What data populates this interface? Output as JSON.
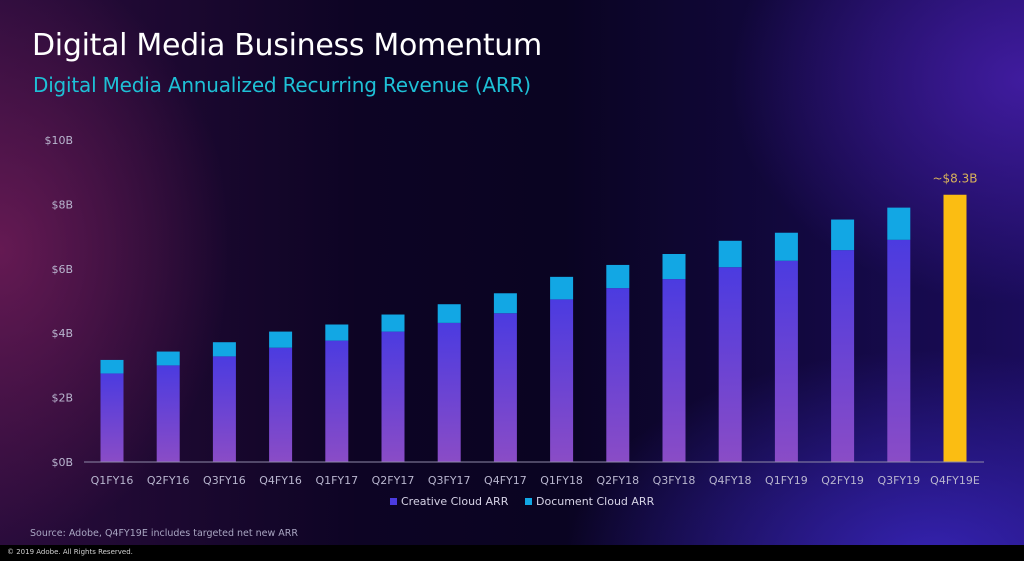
{
  "slide": {
    "title": "Digital Media Business Momentum",
    "subtitle": "Digital Media Annualized Recurring Revenue (ARR)",
    "source": "Source:  Adobe, Q4FY19E includes targeted net new ARR",
    "copyright": "© 2019 Adobe.  All Rights Reserved."
  },
  "colors": {
    "creative_cloud_top": "#4b3be0",
    "creative_cloud_bottom": "#8a4cc6",
    "document_cloud": "#12a7e4",
    "estimate": "#fbbd12",
    "estimate_label": "#d8b25a",
    "axis_text": "#b9b6cf",
    "title": "#ffffff",
    "subtitle": "#1ec0d6"
  },
  "chart_data": {
    "type": "bar",
    "stacked": true,
    "title": "Digital Media Annualized Recurring Revenue (ARR)",
    "xlabel": "",
    "ylabel": "",
    "ylim": [
      0,
      10
    ],
    "y_ticks": [
      0,
      2,
      4,
      6,
      8,
      10
    ],
    "y_tick_labels": [
      "$0B",
      "$2B",
      "$4B",
      "$6B",
      "$8B",
      "$10B"
    ],
    "grid": false,
    "legend": "bottom",
    "categories": [
      "Q1FY16",
      "Q2FY16",
      "Q3FY16",
      "Q4FY16",
      "Q1FY17",
      "Q2FY17",
      "Q3FY17",
      "Q4FY17",
      "Q1FY18",
      "Q2FY18",
      "Q3FY18",
      "Q4FY18",
      "Q1FY19",
      "Q2FY19",
      "Q3FY19",
      "Q4FY19E"
    ],
    "series": [
      {
        "name": "Creative Cloud ARR",
        "values": [
          2.75,
          3.0,
          3.28,
          3.55,
          3.77,
          4.05,
          4.32,
          4.62,
          5.05,
          5.4,
          5.68,
          6.05,
          6.25,
          6.58,
          6.9,
          null
        ]
      },
      {
        "name": "Document Cloud ARR",
        "values": [
          0.42,
          0.43,
          0.44,
          0.5,
          0.5,
          0.53,
          0.58,
          0.62,
          0.7,
          0.72,
          0.78,
          0.82,
          0.87,
          0.95,
          1.0,
          null
        ]
      }
    ],
    "estimate": {
      "category": "Q4FY19E",
      "value": 8.3,
      "label": "~$8.3B"
    }
  }
}
